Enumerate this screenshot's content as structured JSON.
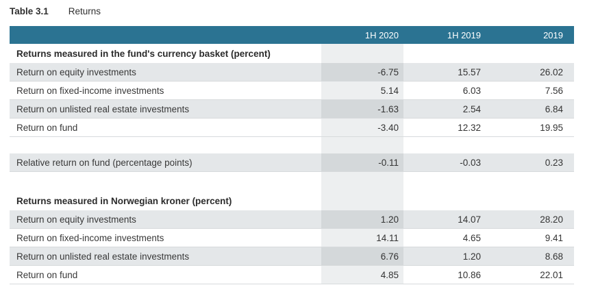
{
  "title": {
    "label": "Table 3.1",
    "name": "Returns"
  },
  "table": {
    "columns": [
      "1H 2020",
      "1H 2019",
      "2019"
    ],
    "highlighted_column": "1H 2020",
    "sections": [
      {
        "heading": "Returns measured in the fund's currency basket (percent)",
        "rows": [
          {
            "label": "Return on equity investments",
            "values": [
              "-6.75",
              "15.57",
              "26.02"
            ]
          },
          {
            "label": "Return on fixed-income investments",
            "values": [
              "5.14",
              "6.03",
              "7.56"
            ]
          },
          {
            "label": "Return on unlisted real estate investments",
            "values": [
              "-1.63",
              "2.54",
              "6.84"
            ]
          },
          {
            "label": "Return on fund",
            "values": [
              "-3.40",
              "12.32",
              "19.95"
            ]
          }
        ]
      },
      {
        "heading": "",
        "rows": [
          {
            "label": "Relative return on fund (percentage points)",
            "values": [
              "-0.11",
              "-0.03",
              "0.23"
            ]
          }
        ]
      },
      {
        "heading": "Returns measured in Norwegian kroner (percent)",
        "rows": [
          {
            "label": "Return on equity investments",
            "values": [
              "1.20",
              "14.07",
              "28.20"
            ]
          },
          {
            "label": "Return on fixed-income investments",
            "values": [
              "14.11",
              "4.65",
              "9.41"
            ]
          },
          {
            "label": "Return on unlisted real estate investments",
            "values": [
              "6.76",
              "1.20",
              "8.68"
            ]
          },
          {
            "label": "Return on fund",
            "values": [
              "4.85",
              "10.86",
              "22.01"
            ]
          }
        ]
      }
    ]
  },
  "colors": {
    "header_bg": "#2b7392",
    "header_text": "#ffffff",
    "zebra_row": "#e4e7e9",
    "highlight_col_light": "#edeff0",
    "highlight_col_dark": "#d4d8da",
    "separator": "#d7dadc",
    "text": "#383838"
  }
}
